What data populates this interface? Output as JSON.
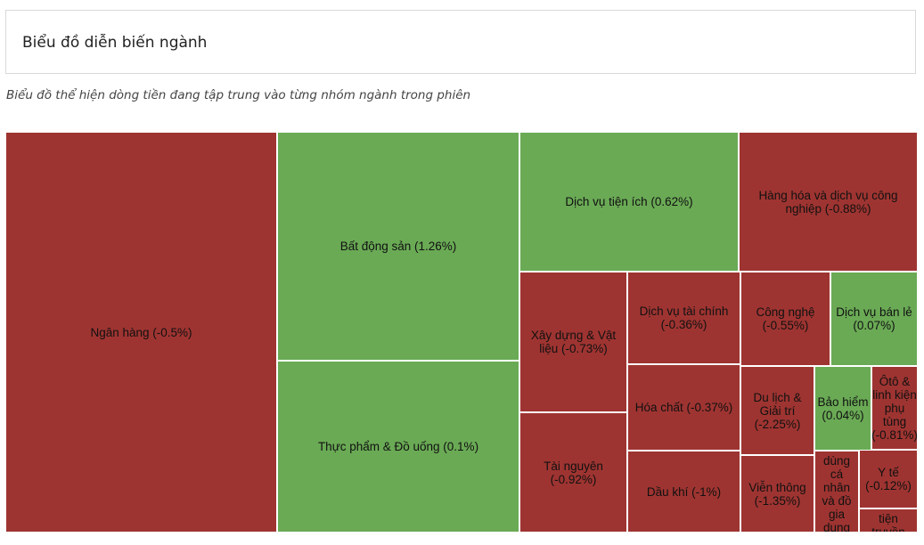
{
  "header": {
    "title": "Biểu đồ diễn biến ngành"
  },
  "description": "Biểu đồ thể hiện dòng tiền đang tập trung vào từng nhóm ngành trong phiên",
  "colors": {
    "up": "#6aaa55",
    "down": "#9e3431"
  },
  "chart_data": {
    "type": "treemap",
    "sectors": [
      {
        "label": "Ngân hàng (-0.5%)",
        "change": -0.5
      },
      {
        "label": "Bất động sản (1.26%)",
        "change": 1.26
      },
      {
        "label": "Thực phẩm & Đồ uống (0.1%)",
        "change": 0.1
      },
      {
        "label": "Dịch vụ tiện ích (0.62%)",
        "change": 0.62
      },
      {
        "label": "Hàng hóa và dịch vụ công nghiệp (-0.88%)",
        "change": -0.88
      },
      {
        "label": "Xây dựng & Vật liệu (-0.73%)",
        "change": -0.73
      },
      {
        "label": "Tài nguyên (-0.92%)",
        "change": -0.92
      },
      {
        "label": "Dịch vụ tài chính (-0.36%)",
        "change": -0.36
      },
      {
        "label": "Hóa chất (-0.37%)",
        "change": -0.37
      },
      {
        "label": "Dầu khí (-1%)",
        "change": -1
      },
      {
        "label": "Công nghệ (-0.55%)",
        "change": -0.55
      },
      {
        "label": "Dịch vụ bán lẻ (0.07%)",
        "change": 0.07
      },
      {
        "label": "Du lịch & Giải trí (-2.25%)",
        "change": -2.25
      },
      {
        "label": "Bảo hiểm (0.04%)",
        "change": 0.04
      },
      {
        "label": "Ôtô & linh kiện phụ tùng (-0.81%)",
        "change": -0.81
      },
      {
        "label": "Viễn thông (-1.35%)",
        "change": -1.35
      },
      {
        "label": "dùng cá nhân và đồ gia dụng",
        "change": null
      },
      {
        "label": "Y tế (-0.12%)",
        "change": -0.12
      },
      {
        "label": "tiện truyền thông",
        "change": null
      }
    ]
  }
}
